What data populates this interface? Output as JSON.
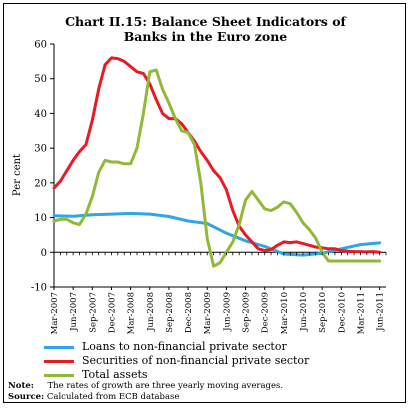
{
  "chart_data": {
    "type": "line",
    "title_line1": "Chart II.15: Balance Sheet Indicators of",
    "title_line2": "Banks in the Euro zone",
    "ylabel": "Per cent",
    "ylim": [
      -10,
      60
    ],
    "yticks": [
      -10,
      0,
      10,
      20,
      30,
      40,
      50,
      60
    ],
    "x_range": [
      0,
      52
    ],
    "xtick_labels": [
      "Mar-2007",
      "Jun-2007",
      "Sep-2007",
      "Dec-2007",
      "Mar-2008",
      "Jun-2008",
      "Sep-2008",
      "Dec-2008",
      "Mar-2009",
      "Jun-2009",
      "Sep-2009",
      "Dec-2009",
      "Mar-2010",
      "Jun-2010",
      "Sep-2010",
      "Dec-2010",
      "Mar-2011",
      "Jun-2011"
    ],
    "grid": false,
    "legend_position": "bottom",
    "series": [
      {
        "name": "Loans to non-financial private sector",
        "color": "#2ea6e8",
        "x": [
          0,
          3,
          6,
          9,
          12,
          15,
          18,
          21,
          24,
          27,
          30,
          33,
          36,
          39,
          42,
          45,
          48,
          51
        ],
        "y": [
          10.5,
          10.4,
          10.8,
          11.0,
          11.2,
          11.0,
          10.3,
          9.0,
          8.3,
          5.5,
          3.3,
          1.7,
          -0.5,
          -0.8,
          -0.3,
          1.0,
          2.2,
          2.7
        ]
      },
      {
        "name": "Securities of non-financial private sector",
        "color": "#e81b23",
        "x": [
          0,
          1,
          2,
          3,
          4,
          5,
          6,
          7,
          8,
          9,
          10,
          11,
          12,
          13,
          14,
          15,
          16,
          17,
          18,
          19,
          20,
          21,
          22,
          23,
          24,
          25,
          26,
          27,
          28,
          29,
          30,
          31,
          32,
          33,
          34,
          35,
          36,
          37,
          38,
          39,
          40,
          41,
          42,
          43,
          44,
          45,
          46,
          47,
          48,
          49,
          50,
          51
        ],
        "y": [
          18.5,
          20.5,
          23.5,
          26.5,
          29.0,
          31.0,
          38.0,
          47.0,
          54.0,
          56.0,
          55.8,
          55.0,
          53.5,
          52.0,
          51.5,
          48.5,
          44.0,
          40.0,
          38.5,
          38.5,
          37.0,
          34.5,
          32.0,
          29.0,
          26.5,
          23.5,
          21.5,
          18.0,
          12.0,
          7.5,
          5.0,
          3.0,
          1.0,
          0.5,
          0.8,
          2.0,
          3.0,
          2.8,
          3.0,
          2.5,
          2.0,
          1.5,
          1.3,
          1.0,
          1.0,
          0.5,
          0.3,
          0.2,
          0.2,
          0.1,
          0.2,
          0.0
        ]
      },
      {
        "name": "Total assets",
        "color": "#92b83a",
        "x": [
          0,
          1,
          2,
          3,
          4,
          5,
          6,
          7,
          8,
          9,
          10,
          11,
          12,
          13,
          14,
          15,
          16,
          17,
          18,
          19,
          20,
          21,
          22,
          23,
          24,
          25,
          26,
          27,
          28,
          29,
          30,
          31,
          32,
          33,
          34,
          35,
          36,
          37,
          38,
          39,
          40,
          41,
          42,
          43,
          44,
          45,
          46,
          47,
          48,
          49,
          50,
          51
        ],
        "y": [
          9.0,
          9.5,
          9.5,
          8.5,
          8.0,
          11.0,
          16.0,
          23.0,
          26.5,
          26.0,
          26.0,
          25.5,
          25.5,
          30.0,
          40.0,
          52.0,
          52.5,
          47.0,
          43.0,
          38.5,
          35.0,
          34.5,
          31.0,
          20.0,
          4.0,
          -4.0,
          -3.0,
          0.0,
          3.0,
          8.0,
          15.0,
          17.5,
          15.0,
          12.5,
          12.0,
          13.0,
          14.5,
          14.0,
          11.5,
          8.5,
          6.5,
          4.0,
          0.0,
          -2.5,
          -2.5,
          -2.5,
          -2.5,
          -2.5,
          -2.5,
          -2.5,
          -2.5,
          -2.5
        ]
      }
    ]
  },
  "note": {
    "note_label": "Note:",
    "note_text": "The rates of growth are three yearly moving averages.",
    "source_label": "Source:",
    "source_text": "Calculated from ECB database"
  }
}
